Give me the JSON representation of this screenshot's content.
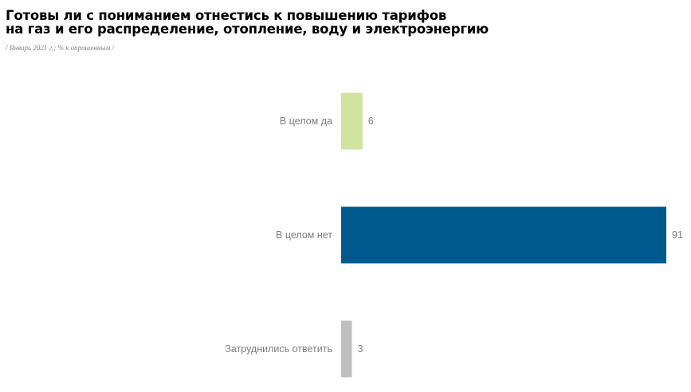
{
  "header": {
    "title_line1": "Готовы ли с пониманием отнестись к повышению тарифов",
    "title_line2": "на газ и его распределение, отопление, воду и электроэнергию",
    "subtitle": "/ Январь 2021 г.; % к опрошенным /"
  },
  "chart_data": {
    "type": "bar",
    "orientation": "horizontal",
    "title": "Готовы ли с пониманием отнестись к повышению тарифов на газ и его распределение, отопление, воду и электроэнергию",
    "subtitle": "/ Январь 2021 г.; % к опрошенным /",
    "categories": [
      "В целом да",
      "В целом нет",
      "Затруднились ответить"
    ],
    "values": [
      6,
      91,
      3
    ],
    "colors": [
      "#d1e3a0",
      "#005a8f",
      "#bfbfbf"
    ],
    "xlim": [
      0,
      91
    ],
    "grid": false,
    "legend": "none"
  }
}
